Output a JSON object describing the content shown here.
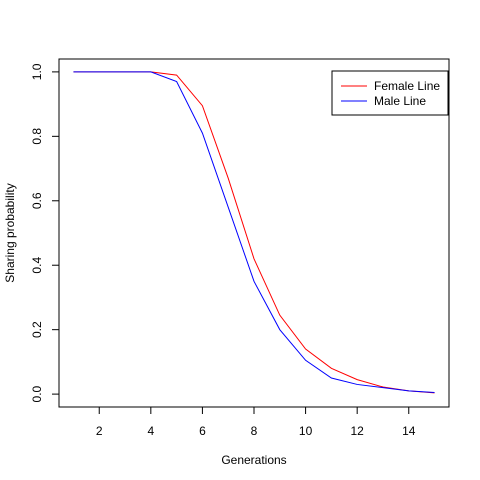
{
  "chart_data": {
    "type": "line",
    "title": "",
    "xlabel": "Generations",
    "ylabel": "Sharing probability",
    "xlim": [
      0.44,
      15.56
    ],
    "ylim": [
      -0.04,
      1.04
    ],
    "x_ticks": [
      2,
      4,
      6,
      8,
      10,
      12,
      14
    ],
    "y_ticks": [
      0.0,
      0.2,
      0.4,
      0.6,
      0.8,
      1.0
    ],
    "x_tick_labels": [
      "2",
      "4",
      "6",
      "8",
      "10",
      "12",
      "14"
    ],
    "y_tick_labels": [
      "0.0",
      "0.2",
      "0.4",
      "0.6",
      "0.8",
      "1.0"
    ],
    "legend_position": "top-right",
    "grid": false,
    "x": [
      1,
      2,
      3,
      4,
      5,
      6,
      7,
      8,
      9,
      10,
      11,
      12,
      13,
      14,
      15
    ],
    "series": [
      {
        "name": "Female Line",
        "color": "#ff0000",
        "values": [
          1.0,
          1.0,
          1.0,
          1.0,
          0.99,
          0.895,
          0.67,
          0.42,
          0.245,
          0.14,
          0.08,
          0.045,
          0.022,
          0.01,
          0.004
        ]
      },
      {
        "name": "Male Line",
        "color": "#0000ff",
        "values": [
          1.0,
          1.0,
          1.0,
          1.0,
          0.97,
          0.81,
          0.58,
          0.35,
          0.2,
          0.105,
          0.05,
          0.03,
          0.02,
          0.01,
          0.005
        ]
      }
    ]
  }
}
